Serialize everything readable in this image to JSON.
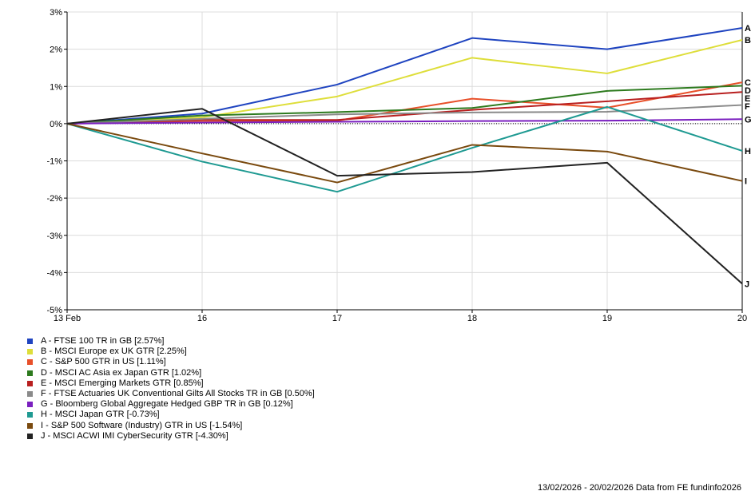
{
  "chart_data": {
    "type": "line",
    "x_labels": [
      "13 Feb",
      "16",
      "17",
      "18",
      "19",
      "20"
    ],
    "ylim": [
      -5,
      3
    ],
    "y_ticks": [
      3,
      2,
      1,
      0,
      -1,
      -2,
      -3,
      -4,
      -5
    ],
    "y_tick_labels": [
      "3%",
      "2%",
      "1%",
      "0%",
      "-1%",
      "-2%",
      "-3%",
      "-4%",
      "-5%"
    ],
    "grid": true,
    "legend_position": "bottom-left",
    "series": [
      {
        "key": "A",
        "name": "A - FTSE 100 TR in GB [2.57%]",
        "color": "#1f44c0",
        "values": [
          0,
          0.27,
          1.05,
          2.3,
          2.0,
          2.57
        ]
      },
      {
        "key": "B",
        "name": "B - MSCI Europe ex UK GTR [2.25%]",
        "color": "#dede3a",
        "values": [
          0,
          0.17,
          0.73,
          1.77,
          1.35,
          2.25
        ]
      },
      {
        "key": "C",
        "name": "C - S&P 500 GTR in US [1.11%]",
        "color": "#e8502a",
        "values": [
          0,
          0.05,
          0.08,
          0.67,
          0.43,
          1.11
        ]
      },
      {
        "key": "D",
        "name": "D - MSCI AC Asia ex Japan GTR [1.02%]",
        "color": "#2d7a1e",
        "values": [
          0,
          0.22,
          0.31,
          0.42,
          0.88,
          1.02
        ]
      },
      {
        "key": "E",
        "name": "E - MSCI Emerging Markets GTR [0.85%]",
        "color": "#b81f1f",
        "values": [
          0,
          0.1,
          0.1,
          0.37,
          0.6,
          0.85
        ]
      },
      {
        "key": "F",
        "name": "F - FTSE Actuaries UK Conventional Gilts All Stocks TR in GB [0.50%]",
        "color": "#8a8a8a",
        "values": [
          0,
          0.13,
          0.25,
          0.3,
          0.32,
          0.5
        ]
      },
      {
        "key": "G",
        "name": "G - Bloomberg Global Aggregate Hedged GBP TR in GB [0.12%]",
        "color": "#7a1fbf",
        "values": [
          0,
          0.03,
          0.05,
          0.07,
          0.08,
          0.12
        ]
      },
      {
        "key": "H",
        "name": "H - MSCI Japan GTR [-0.73%]",
        "color": "#1f9a92",
        "values": [
          0,
          -1.02,
          -1.83,
          -0.65,
          0.45,
          -0.73
        ]
      },
      {
        "key": "I",
        "name": "I - S&P 500 Software (Industry) GTR in US [-1.54%]",
        "color": "#7a4a0f",
        "values": [
          0,
          -0.8,
          -1.58,
          -0.57,
          -0.75,
          -1.54
        ]
      },
      {
        "key": "J",
        "name": "J - MSCI ACWI IMI CyberSecurity GTR [-4.30%]",
        "color": "#222222",
        "values": [
          0,
          0.4,
          -1.4,
          -1.3,
          -1.05,
          -4.3
        ]
      }
    ]
  },
  "footer": "13/02/2026 - 20/02/2026 Data from FE fundinfo2026"
}
